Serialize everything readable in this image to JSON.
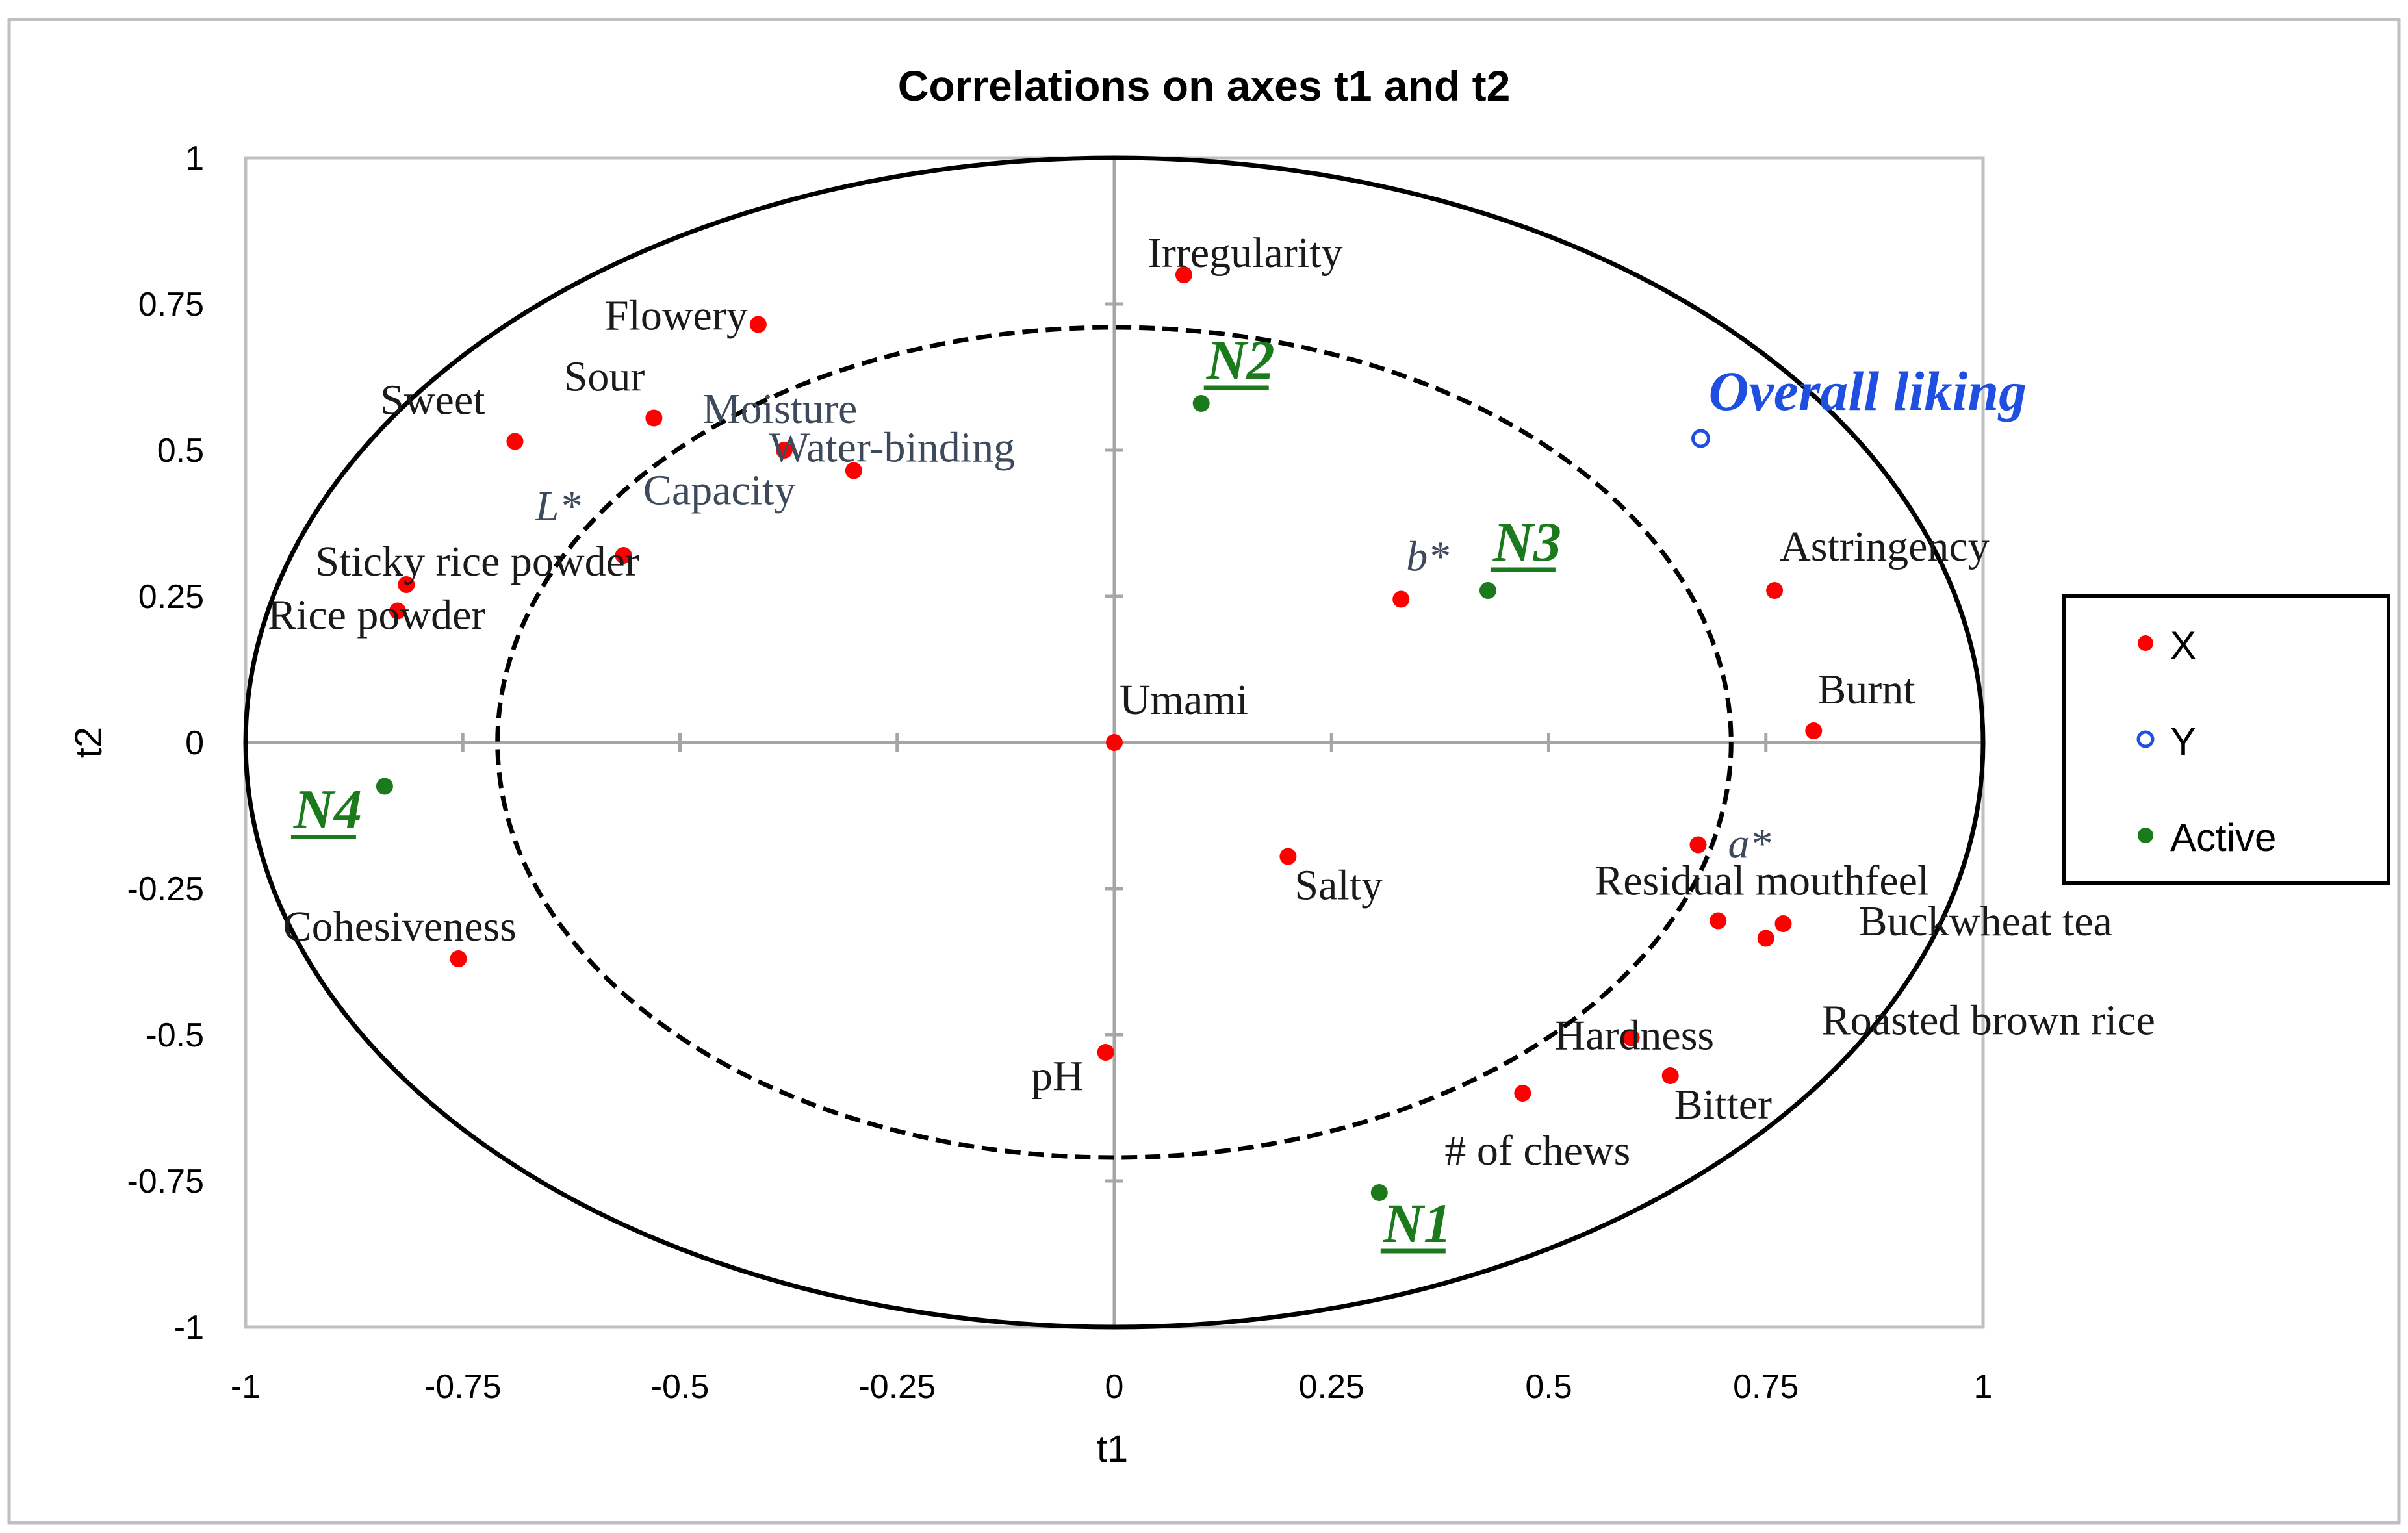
{
  "chart_data": {
    "type": "scatter",
    "title": "Correlations on axes t1 and t2",
    "xlabel": "t1",
    "ylabel": "t2",
    "xlim": [
      -1,
      1
    ],
    "ylim": [
      -1,
      1
    ],
    "xticks": [
      -1,
      -0.75,
      -0.5,
      -0.25,
      0,
      0.25,
      0.5,
      0.75,
      1
    ],
    "yticks": [
      -1,
      -0.75,
      -0.5,
      -0.25,
      0,
      0.25,
      0.5,
      0.75,
      1
    ],
    "xtick_labels": [
      "-1",
      "-0.75",
      "-0.5",
      "-0.25",
      "0",
      "0.25",
      "0.5",
      "0.75",
      "1"
    ],
    "ytick_labels": [
      "-1",
      "-0.75",
      "-0.5",
      "-0.25",
      "0",
      "0.25",
      "0.5",
      "0.75",
      "1"
    ],
    "circles": [
      {
        "name": "r = 1",
        "radius": 1,
        "style": "solid"
      },
      {
        "name": "r = 0.71",
        "radius": 0.71,
        "style": "dashed"
      }
    ],
    "legend": {
      "position": "right",
      "entries": [
        "X",
        "Y",
        "Active"
      ]
    },
    "colors": {
      "X": "#ff0000",
      "Y": "#1f4fe0",
      "Active": "#1b7a1b",
      "label_dark": "#1a1a1a",
      "label_slate": "#3d4a5c",
      "active_label": "#1b7a1b",
      "y_label": "#1f4fe0"
    },
    "series": [
      {
        "name": "X",
        "marker": "filled-circle",
        "points": [
          {
            "label": "Irregularity",
            "x": 0.08,
            "y": 0.8
          },
          {
            "label": "Flowery",
            "x": -0.41,
            "y": 0.715
          },
          {
            "label": "Sour",
            "x": -0.53,
            "y": 0.555
          },
          {
            "label": "Sweet",
            "x": -0.69,
            "y": 0.515
          },
          {
            "label": "Moisture",
            "x": -0.38,
            "y": 0.5
          },
          {
            "label": "Water-binding Capacity",
            "x": -0.3,
            "y": 0.465
          },
          {
            "label": "L*",
            "x": -0.565,
            "y": 0.32
          },
          {
            "label": "Sticky rice powder",
            "x": -0.815,
            "y": 0.27
          },
          {
            "label": "Rice powder",
            "x": -0.825,
            "y": 0.225
          },
          {
            "label": "b*",
            "x": 0.33,
            "y": 0.245
          },
          {
            "label": "Astringency",
            "x": 0.76,
            "y": 0.26
          },
          {
            "label": "Burnt",
            "x": 0.805,
            "y": 0.02
          },
          {
            "label": "Umami",
            "x": 0.0,
            "y": 0.0
          },
          {
            "label": "a*",
            "x": 0.672,
            "y": -0.175
          },
          {
            "label": "Salty",
            "x": 0.2,
            "y": -0.195
          },
          {
            "label": "Residual mouthfeel",
            "x": 0.695,
            "y": -0.305
          },
          {
            "label": "Buckwheat tea",
            "x": 0.77,
            "y": -0.31
          },
          {
            "label": "Roasted brown rice",
            "x": 0.75,
            "y": -0.335
          },
          {
            "label": "Cohesiveness",
            "x": -0.755,
            "y": -0.37
          },
          {
            "label": "Hardness",
            "x": 0.595,
            "y": -0.505
          },
          {
            "label": "Bitter",
            "x": 0.64,
            "y": -0.57
          },
          {
            "label": "# of chews",
            "x": 0.47,
            "y": -0.6
          },
          {
            "label": "pH",
            "x": -0.01,
            "y": -0.53
          }
        ]
      },
      {
        "name": "Y",
        "marker": "open-circle",
        "points": [
          {
            "label": "Overall liking",
            "x": 0.675,
            "y": 0.52
          }
        ]
      },
      {
        "name": "Active",
        "marker": "filled-circle",
        "points": [
          {
            "label": "N1",
            "x": 0.305,
            "y": -0.77
          },
          {
            "label": "N2",
            "x": 0.1,
            "y": 0.58
          },
          {
            "label": "N3",
            "x": 0.43,
            "y": 0.26
          },
          {
            "label": "N4",
            "x": -0.84,
            "y": -0.075
          }
        ]
      }
    ]
  }
}
